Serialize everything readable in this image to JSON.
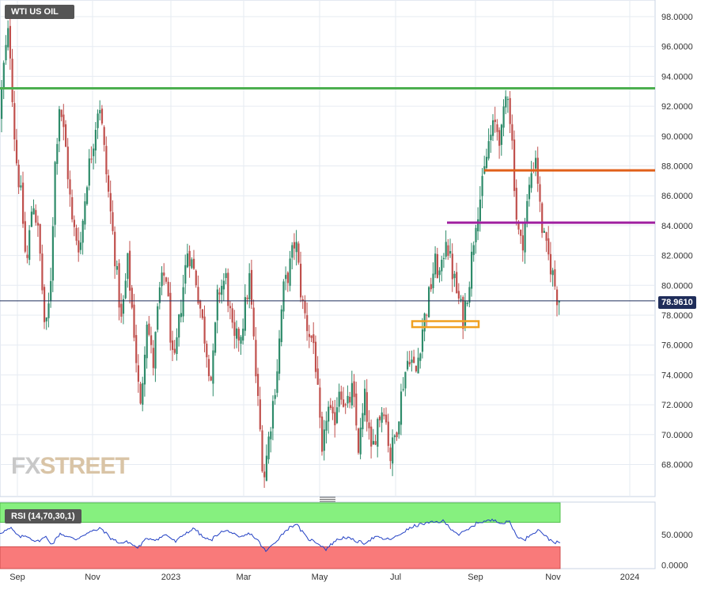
{
  "title": "WTI US OIL",
  "watermark": {
    "fx": "FX",
    "street": "STREET"
  },
  "last_price_label": "78.9610",
  "colors": {
    "up": "#2e8b6a",
    "down": "#c0504d",
    "rsi_line": "#2240c4",
    "level_green": "#4caf50",
    "level_orange": "#e0601a",
    "level_purple": "#a020a0",
    "zone_orange": "#f0a020",
    "last_price_line": "#1f2d5a"
  },
  "chart_data": {
    "type": "candlestick",
    "instrument": "WTI US OIL",
    "y_ticks": [
      "98.0000",
      "96.0000",
      "94.0000",
      "92.0000",
      "90.0000",
      "88.0000",
      "86.0000",
      "84.0000",
      "82.0000",
      "80.0000",
      "78.0000",
      "76.0000",
      "74.0000",
      "72.0000",
      "70.0000",
      "68.0000"
    ],
    "ylim": [
      66.0,
      99.0
    ],
    "x_ticks": [
      "Sep",
      "Nov",
      "2023",
      "Mar",
      "May",
      "Jul",
      "Sep",
      "Nov",
      "2024"
    ],
    "horizontal_levels": [
      {
        "price": 93.2,
        "color": "green"
      },
      {
        "price": 87.7,
        "color": "orange"
      },
      {
        "price": 84.2,
        "color": "purple"
      }
    ],
    "zone": {
      "low": 77.2,
      "high": 77.6,
      "color": "orange"
    },
    "last_price": 78.961,
    "anchors": [
      [
        0,
        90.0
      ],
      [
        8,
        95.0
      ],
      [
        14,
        97.2
      ],
      [
        22,
        89.0
      ],
      [
        30,
        85.5
      ],
      [
        36,
        81.0
      ],
      [
        44,
        86.0
      ],
      [
        52,
        83.0
      ],
      [
        60,
        76.5
      ],
      [
        66,
        79.5
      ],
      [
        72,
        88.0
      ],
      [
        78,
        92.4
      ],
      [
        86,
        89.0
      ],
      [
        94,
        84.0
      ],
      [
        104,
        82.5
      ],
      [
        112,
        87.0
      ],
      [
        120,
        89.5
      ],
      [
        128,
        92.6
      ],
      [
        136,
        88.0
      ],
      [
        146,
        83.0
      ],
      [
        156,
        77.5
      ],
      [
        164,
        81.5
      ],
      [
        172,
        77.0
      ],
      [
        180,
        71.5
      ],
      [
        188,
        78.0
      ],
      [
        196,
        74.5
      ],
      [
        204,
        79.5
      ],
      [
        212,
        81.0
      ],
      [
        222,
        74.0
      ],
      [
        232,
        79.0
      ],
      [
        240,
        82.5
      ],
      [
        250,
        80.5
      ],
      [
        260,
        77.0
      ],
      [
        270,
        73.5
      ],
      [
        278,
        79.5
      ],
      [
        288,
        80.5
      ],
      [
        298,
        76.0
      ],
      [
        308,
        77.0
      ],
      [
        318,
        80.5
      ],
      [
        326,
        74.0
      ],
      [
        336,
        67.0
      ],
      [
        344,
        70.5
      ],
      [
        354,
        75.0
      ],
      [
        360,
        79.5
      ],
      [
        368,
        81.0
      ],
      [
        376,
        83.2
      ],
      [
        384,
        79.0
      ],
      [
        392,
        77.0
      ],
      [
        400,
        76.0
      ],
      [
        410,
        68.0
      ],
      [
        416,
        72.0
      ],
      [
        424,
        70.5
      ],
      [
        432,
        73.5
      ],
      [
        440,
        71.5
      ],
      [
        448,
        73.0
      ],
      [
        456,
        69.0
      ],
      [
        464,
        72.5
      ],
      [
        472,
        68.5
      ],
      [
        480,
        71.0
      ],
      [
        488,
        72.0
      ],
      [
        496,
        68.5
      ],
      [
        504,
        70.5
      ],
      [
        512,
        73.5
      ],
      [
        520,
        75.5
      ],
      [
        528,
        74.0
      ],
      [
        536,
        77.0
      ],
      [
        544,
        79.0
      ],
      [
        552,
        81.5
      ],
      [
        560,
        80.5
      ],
      [
        566,
        83.5
      ],
      [
        572,
        81.5
      ],
      [
        580,
        79.5
      ],
      [
        588,
        77.8
      ],
      [
        596,
        80.5
      ],
      [
        604,
        84.5
      ],
      [
        612,
        86.5
      ],
      [
        620,
        89.5
      ],
      [
        628,
        90.8
      ],
      [
        636,
        89.8
      ],
      [
        644,
        93.5
      ],
      [
        650,
        89.5
      ],
      [
        656,
        84.0
      ],
      [
        662,
        82.5
      ],
      [
        668,
        85.0
      ],
      [
        674,
        87.5
      ],
      [
        680,
        88.8
      ],
      [
        686,
        84.5
      ],
      [
        692,
        82.5
      ],
      [
        698,
        81.5
      ],
      [
        704,
        80.0
      ],
      [
        708,
        78.961
      ]
    ],
    "rsi": {
      "label": "RSI (14,70,30,1)",
      "y_ticks": [
        "50.0000",
        "0.0000"
      ],
      "ylim": [
        0,
        100
      ],
      "overbought": 70,
      "oversold": 30,
      "values": [
        [
          0,
          53
        ],
        [
          14,
          60
        ],
        [
          24,
          46
        ],
        [
          34,
          48
        ],
        [
          46,
          38
        ],
        [
          58,
          46
        ],
        [
          66,
          34
        ],
        [
          76,
          52
        ],
        [
          86,
          46
        ],
        [
          96,
          42
        ],
        [
          106,
          50
        ],
        [
          118,
          56
        ],
        [
          128,
          60
        ],
        [
          140,
          44
        ],
        [
          152,
          36
        ],
        [
          162,
          38
        ],
        [
          174,
          28
        ],
        [
          186,
          44
        ],
        [
          198,
          42
        ],
        [
          210,
          50
        ],
        [
          222,
          38
        ],
        [
          234,
          52
        ],
        [
          246,
          60
        ],
        [
          256,
          46
        ],
        [
          266,
          40
        ],
        [
          278,
          54
        ],
        [
          290,
          56
        ],
        [
          302,
          44
        ],
        [
          316,
          52
        ],
        [
          326,
          40
        ],
        [
          336,
          22
        ],
        [
          348,
          38
        ],
        [
          362,
          58
        ],
        [
          374,
          68
        ],
        [
          388,
          44
        ],
        [
          402,
          36
        ],
        [
          412,
          26
        ],
        [
          424,
          40
        ],
        [
          436,
          46
        ],
        [
          448,
          40
        ],
        [
          460,
          36
        ],
        [
          474,
          46
        ],
        [
          488,
          42
        ],
        [
          498,
          44
        ],
        [
          512,
          56
        ],
        [
          524,
          64
        ],
        [
          536,
          68
        ],
        [
          548,
          70
        ],
        [
          560,
          72
        ],
        [
          570,
          60
        ],
        [
          580,
          50
        ],
        [
          592,
          58
        ],
        [
          604,
          70
        ],
        [
          614,
          72
        ],
        [
          626,
          74
        ],
        [
          636,
          68
        ],
        [
          644,
          72
        ],
        [
          652,
          50
        ],
        [
          662,
          40
        ],
        [
          672,
          52
        ],
        [
          682,
          58
        ],
        [
          692,
          44
        ],
        [
          700,
          38
        ],
        [
          708,
          36
        ]
      ]
    }
  }
}
